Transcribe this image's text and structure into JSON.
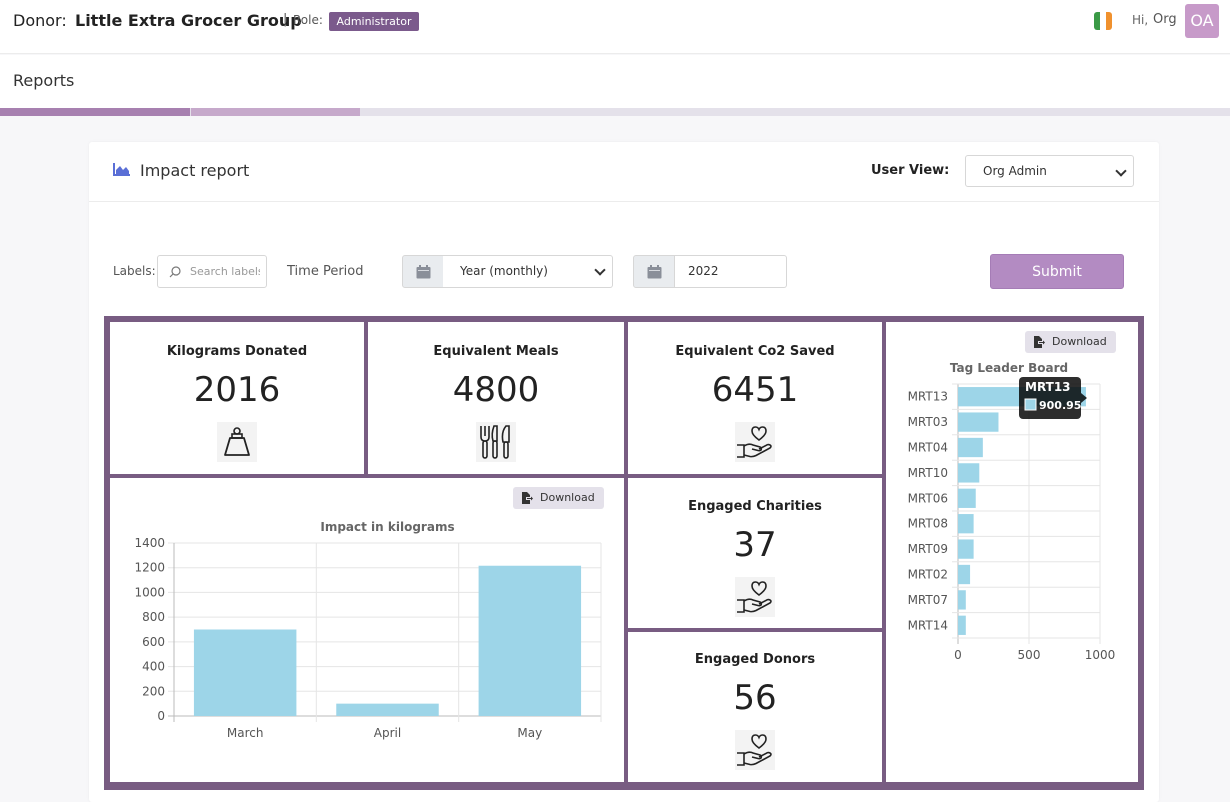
{
  "header": {
    "donor_label": "Donor:",
    "donor_name": "Little Extra Grocer Group",
    "separator": "|",
    "role_label": "Role:",
    "role_badge": "Administrator",
    "greeting": "Hi,",
    "user_name": "Org",
    "avatar_initials": "OA",
    "flag_icon": "ireland-flag-icon"
  },
  "page": {
    "title": "Reports"
  },
  "card": {
    "icon": "area-chart-icon",
    "title": "Impact report",
    "user_view_label": "User View:",
    "user_view_value": "Org Admin"
  },
  "filters": {
    "labels_label": "Labels:",
    "search_placeholder": "Search labels",
    "time_period_label": "Time Period",
    "period_value": "Year (monthly)",
    "year_value": "2022",
    "submit_label": "Submit"
  },
  "tiles": {
    "kilograms": {
      "title": "Kilograms Donated",
      "value": "2016",
      "icon": "weight-icon"
    },
    "meals": {
      "title": "Equivalent Meals",
      "value": "4800",
      "icon": "fork-knife-icon"
    },
    "co2": {
      "title": "Equivalent Co2 Saved",
      "value": "6451",
      "icon": "heart-hand-icon"
    },
    "charities": {
      "title": "Engaged Charities",
      "value": "37",
      "icon": "heart-hand-icon"
    },
    "donors": {
      "title": "Engaged Donors",
      "value": "56",
      "icon": "heart-hand-icon"
    }
  },
  "download_label": "Download",
  "colors": {
    "accent": "#785c82",
    "badge": "#7b5a8c",
    "bar": "#9dd5e8",
    "submit": "#b38bc2"
  },
  "chart_data": [
    {
      "type": "bar",
      "title": "Impact in kilograms",
      "categories": [
        "March",
        "April",
        "May"
      ],
      "values": [
        700,
        100,
        1216
      ],
      "ylim": [
        0,
        1400
      ],
      "yticks": [
        0,
        200,
        400,
        600,
        800,
        1000,
        1200,
        1400
      ],
      "xlabel": "",
      "ylabel": "",
      "grid": true
    },
    {
      "type": "bar",
      "orientation": "horizontal",
      "title": "Tag Leader Board",
      "categories": [
        "MRT13",
        "MRT03",
        "MRT04",
        "MRT10",
        "MRT06",
        "MRT08",
        "MRT09",
        "MRT02",
        "MRT07",
        "MRT14"
      ],
      "values": [
        900.95,
        285,
        175,
        150,
        125,
        110,
        110,
        85,
        55,
        55
      ],
      "xlim": [
        0,
        1000
      ],
      "xticks": [
        0,
        500,
        1000
      ],
      "grid": true,
      "tooltip": {
        "label": "MRT13",
        "value": "900.95"
      }
    }
  ]
}
